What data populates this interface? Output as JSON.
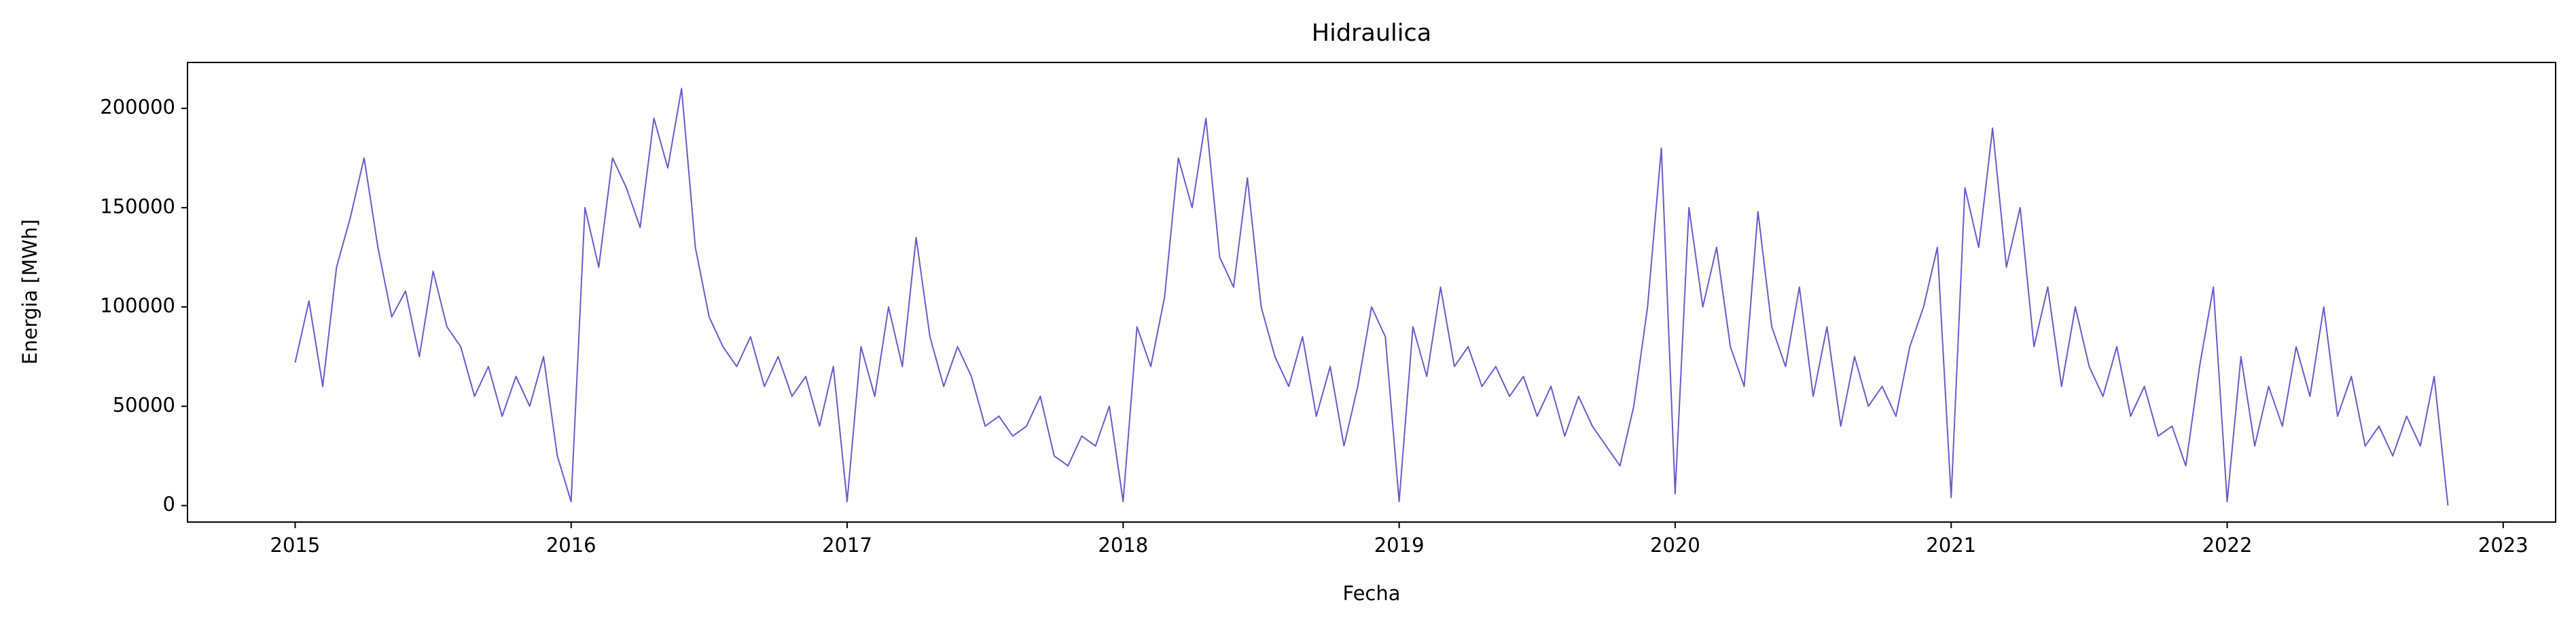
{
  "chart_data": {
    "type": "line",
    "title": "Hidraulica",
    "x_label": "Fecha",
    "y_label": "Energia [MWh]",
    "color": "#6a5acd",
    "x": [
      2015.0,
      2015.05,
      2015.1,
      2015.15,
      2015.2,
      2015.25,
      2015.3,
      2015.35,
      2015.4,
      2015.45,
      2015.5,
      2015.55,
      2015.6,
      2015.65,
      2015.7,
      2015.75,
      2015.8,
      2015.85,
      2015.9,
      2015.95,
      2016.0,
      2016.05,
      2016.1,
      2016.15,
      2016.2,
      2016.25,
      2016.3,
      2016.35,
      2016.4,
      2016.45,
      2016.5,
      2016.55,
      2016.6,
      2016.65,
      2016.7,
      2016.75,
      2016.8,
      2016.85,
      2016.9,
      2016.95,
      2017.0,
      2017.05,
      2017.1,
      2017.15,
      2017.2,
      2017.25,
      2017.3,
      2017.35,
      2017.4,
      2017.45,
      2017.5,
      2017.55,
      2017.6,
      2017.65,
      2017.7,
      2017.75,
      2017.8,
      2017.85,
      2017.9,
      2017.95,
      2018.0,
      2018.05,
      2018.1,
      2018.15,
      2018.2,
      2018.25,
      2018.3,
      2018.35,
      2018.4,
      2018.45,
      2018.5,
      2018.55,
      2018.6,
      2018.65,
      2018.7,
      2018.75,
      2018.8,
      2018.85,
      2018.9,
      2018.95,
      2019.0,
      2019.05,
      2019.1,
      2019.15,
      2019.2,
      2019.25,
      2019.3,
      2019.35,
      2019.4,
      2019.45,
      2019.5,
      2019.55,
      2019.6,
      2019.65,
      2019.7,
      2019.75,
      2019.8,
      2019.85,
      2019.9,
      2019.95,
      2020.0,
      2020.05,
      2020.1,
      2020.15,
      2020.2,
      2020.25,
      2020.3,
      2020.35,
      2020.4,
      2020.45,
      2020.5,
      2020.55,
      2020.6,
      2020.65,
      2020.7,
      2020.75,
      2020.8,
      2020.85,
      2020.9,
      2020.95,
      2021.0,
      2021.05,
      2021.1,
      2021.15,
      2021.2,
      2021.25,
      2021.3,
      2021.35,
      2021.4,
      2021.45,
      2021.5,
      2021.55,
      2021.6,
      2021.65,
      2021.7,
      2021.75,
      2021.8,
      2021.85,
      2021.9,
      2021.95,
      2022.0,
      2022.05,
      2022.1,
      2022.15,
      2022.2,
      2022.25,
      2022.3,
      2022.35,
      2022.4,
      2022.45,
      2022.5,
      2022.55,
      2022.6,
      2022.65,
      2022.7,
      2022.75,
      2022.8
    ],
    "values": [
      72000,
      103000,
      60000,
      120000,
      145000,
      175000,
      130000,
      95000,
      108000,
      75000,
      118000,
      90000,
      80000,
      55000,
      70000,
      45000,
      65000,
      50000,
      75000,
      25000,
      2000,
      150000,
      120000,
      175000,
      160000,
      140000,
      195000,
      170000,
      210000,
      130000,
      95000,
      80000,
      70000,
      85000,
      60000,
      75000,
      55000,
      65000,
      40000,
      70000,
      2000,
      80000,
      55000,
      100000,
      70000,
      135000,
      85000,
      60000,
      80000,
      65000,
      40000,
      45000,
      35000,
      40000,
      55000,
      25000,
      20000,
      35000,
      30000,
      50000,
      2000,
      90000,
      70000,
      105000,
      175000,
      150000,
      195000,
      125000,
      110000,
      165000,
      100000,
      75000,
      60000,
      85000,
      45000,
      70000,
      30000,
      60000,
      100000,
      85000,
      2000,
      90000,
      65000,
      110000,
      70000,
      80000,
      60000,
      70000,
      55000,
      65000,
      45000,
      60000,
      35000,
      55000,
      40000,
      30000,
      20000,
      50000,
      100000,
      180000,
      6000,
      150000,
      100000,
      130000,
      80000,
      60000,
      148000,
      90000,
      70000,
      110000,
      55000,
      90000,
      40000,
      75000,
      50000,
      60000,
      45000,
      80000,
      100000,
      130000,
      4000,
      160000,
      130000,
      190000,
      120000,
      150000,
      80000,
      110000,
      60000,
      100000,
      70000,
      55000,
      80000,
      45000,
      60000,
      35000,
      40000,
      20000,
      70000,
      110000,
      2000,
      75000,
      30000,
      60000,
      40000,
      80000,
      55000,
      100000,
      45000,
      65000,
      30000,
      40000,
      25000,
      45000,
      30000,
      65000,
      0
    ],
    "xlim": [
      2014.61,
      2023.19
    ],
    "xticks": [
      2015,
      2016,
      2017,
      2018,
      2019,
      2020,
      2021,
      2022,
      2023
    ],
    "ylim": [
      -8300,
      223100
    ],
    "yticks": [
      0,
      50000,
      100000,
      150000,
      200000
    ]
  }
}
